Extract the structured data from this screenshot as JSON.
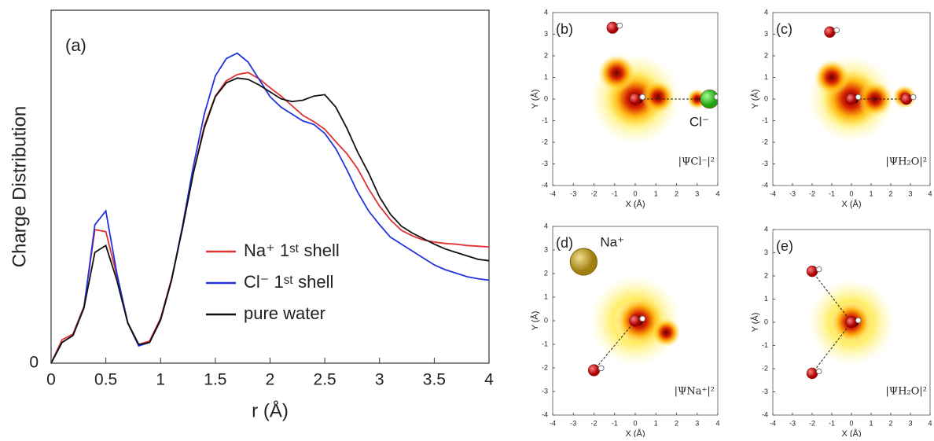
{
  "chart_data": [
    {
      "type": "line",
      "panel_label": "(a)",
      "x_label": "r (Å)",
      "y_label": "Charge Distribution",
      "x": [
        0,
        0.1,
        0.2,
        0.3,
        0.4,
        0.5,
        0.6,
        0.7,
        0.8,
        0.9,
        1.0,
        1.1,
        1.2,
        1.3,
        1.4,
        1.5,
        1.6,
        1.7,
        1.8,
        1.9,
        2.0,
        2.1,
        2.2,
        2.3,
        2.4,
        2.5,
        2.6,
        2.7,
        2.8,
        2.9,
        3.0,
        3.1,
        3.2,
        3.3,
        3.4,
        3.5,
        3.6,
        3.7,
        3.8,
        3.9,
        4.0
      ],
      "series": [
        {
          "name": "Na⁺ 1ˢᵗ shell",
          "color": "#e03030",
          "values": [
            0,
            0.34,
            0.42,
            0.82,
            1.93,
            1.9,
            1.27,
            0.59,
            0.27,
            0.32,
            0.65,
            1.22,
            1.95,
            2.75,
            3.43,
            3.86,
            4.08,
            4.17,
            4.2,
            4.11,
            3.98,
            3.86,
            3.72,
            3.58,
            3.49,
            3.38,
            3.2,
            3.03,
            2.81,
            2.52,
            2.27,
            2.07,
            1.92,
            1.84,
            1.78,
            1.75,
            1.73,
            1.72,
            1.7,
            1.69,
            1.68
          ]
        },
        {
          "name": "Cl⁻ 1ˢᵗ shell",
          "color": "#2233dd",
          "values": [
            0,
            0.3,
            0.4,
            0.8,
            2.0,
            2.2,
            1.3,
            0.58,
            0.25,
            0.3,
            0.62,
            1.2,
            1.98,
            2.85,
            3.6,
            4.15,
            4.4,
            4.48,
            4.35,
            4.1,
            3.85,
            3.7,
            3.6,
            3.5,
            3.45,
            3.32,
            3.1,
            2.8,
            2.47,
            2.2,
            2.0,
            1.82,
            1.72,
            1.62,
            1.52,
            1.42,
            1.35,
            1.3,
            1.25,
            1.22,
            1.2
          ]
        },
        {
          "name": "pure water",
          "color": "#111111",
          "values": [
            0,
            0.3,
            0.4,
            0.8,
            1.6,
            1.7,
            1.2,
            0.58,
            0.27,
            0.3,
            0.63,
            1.2,
            1.95,
            2.75,
            3.4,
            3.85,
            4.05,
            4.12,
            4.1,
            4.02,
            3.92,
            3.82,
            3.78,
            3.8,
            3.86,
            3.88,
            3.7,
            3.4,
            3.05,
            2.75,
            2.4,
            2.15,
            1.98,
            1.88,
            1.8,
            1.72,
            1.65,
            1.6,
            1.55,
            1.5,
            1.48
          ]
        }
      ],
      "xlim": [
        0,
        4
      ],
      "xticks": [
        0,
        0.5,
        1,
        1.5,
        2,
        2.5,
        3,
        3.5,
        4
      ],
      "ylim": [
        0,
        5.1
      ],
      "yticks": [
        0
      ],
      "legend": "lower-right"
    },
    {
      "type": "density-map",
      "panel_label": "(b)",
      "annotation": "|ΨCl⁻|²",
      "ion_label": "Cl⁻",
      "x_label": "X (Å)",
      "y_label": "Y (Å)",
      "xlim": [
        -4,
        4
      ],
      "ylim": [
        -4,
        4
      ],
      "xticks": [
        -4,
        -3,
        -2,
        -1,
        0,
        1,
        2,
        3,
        4
      ],
      "yticks": [
        -4,
        -3,
        -2,
        -1,
        0,
        1,
        2,
        3,
        4
      ]
    },
    {
      "type": "density-map",
      "panel_label": "(c)",
      "annotation": "|ΨH₂O|²",
      "x_label": "X (Å)",
      "y_label": "Y (Å)",
      "xlim": [
        -4,
        4
      ],
      "ylim": [
        -4,
        4
      ],
      "xticks": [
        -4,
        -3,
        -2,
        -1,
        0,
        1,
        2,
        3,
        4
      ],
      "yticks": [
        -4,
        -3,
        -2,
        -1,
        0,
        1,
        2,
        3,
        4
      ]
    },
    {
      "type": "density-map",
      "panel_label": "(d)",
      "annotation": "|ΨNa⁺|²",
      "ion_label": "Na⁺",
      "x_label": "X (Å)",
      "y_label": "Y (Å)",
      "xlim": [
        -4,
        4
      ],
      "ylim": [
        -4,
        4
      ],
      "xticks": [
        -4,
        -3,
        -2,
        -1,
        0,
        1,
        2,
        3,
        4
      ],
      "yticks": [
        -4,
        -3,
        -2,
        -1,
        0,
        1,
        2,
        3,
        4
      ]
    },
    {
      "type": "density-map",
      "panel_label": "(e)",
      "annotation": "|ΨH₂O|²",
      "x_label": "X (Å)",
      "y_label": "Y (Å)",
      "xlim": [
        -4,
        4
      ],
      "ylim": [
        -4,
        4
      ],
      "xticks": [
        -4,
        -3,
        -2,
        -1,
        0,
        1,
        2,
        3,
        4
      ],
      "yticks": [
        -4,
        -3,
        -2,
        -1,
        0,
        1,
        2,
        3,
        4
      ]
    }
  ]
}
